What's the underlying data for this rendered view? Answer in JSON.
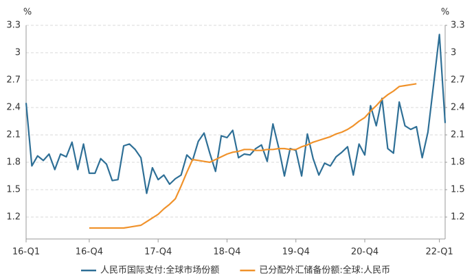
{
  "chart_data": {
    "type": "line",
    "y_label": "%",
    "y2_label": "%",
    "categories": [
      "16-Q1",
      null,
      null,
      null,
      null,
      null,
      null,
      null,
      null,
      null,
      null,
      "16-Q4",
      null,
      null,
      null,
      null,
      null,
      null,
      null,
      null,
      null,
      null,
      null,
      "17-Q4",
      null,
      null,
      null,
      null,
      null,
      null,
      null,
      null,
      null,
      null,
      null,
      "18-Q4",
      null,
      null,
      null,
      null,
      null,
      null,
      null,
      null,
      null,
      null,
      null,
      "19-Q4",
      null,
      null,
      null,
      null,
      null,
      null,
      null,
      null,
      null,
      null,
      null,
      "20-Q4",
      null,
      null,
      null,
      null,
      null,
      null,
      null,
      null,
      null,
      null,
      null,
      null,
      "22-Q1",
      null
    ],
    "series": [
      {
        "name": "人民币国际支付:全球市场份额",
        "color": "#2e6f96",
        "values": [
          2.45,
          1.76,
          1.87,
          1.82,
          1.89,
          1.72,
          1.89,
          1.86,
          2.02,
          1.72,
          2.0,
          1.68,
          1.68,
          1.84,
          1.78,
          1.6,
          1.61,
          1.98,
          2.0,
          1.94,
          1.85,
          1.46,
          1.74,
          1.61,
          1.66,
          1.56,
          1.62,
          1.66,
          1.88,
          1.82,
          2.03,
          2.12,
          1.9,
          1.7,
          2.09,
          2.07,
          2.15,
          1.85,
          1.89,
          1.88,
          1.95,
          1.99,
          1.81,
          2.22,
          1.96,
          1.65,
          1.95,
          1.93,
          1.65,
          2.11,
          1.84,
          1.66,
          1.79,
          1.76,
          1.86,
          1.91,
          1.97,
          1.66,
          2.0,
          1.88,
          2.42,
          2.2,
          2.5,
          1.95,
          1.9,
          2.46,
          2.2,
          2.16,
          2.19,
          1.85,
          2.13,
          2.66,
          3.2,
          2.23
        ]
      },
      {
        "name": "已分配外汇储备份额:全球:人民币",
        "color": "#f0922b",
        "axis": "y2",
        "values": [
          null,
          null,
          null,
          null,
          null,
          null,
          null,
          null,
          null,
          null,
          null,
          1.08,
          1.08,
          1.08,
          1.08,
          1.08,
          1.08,
          1.08,
          1.09,
          1.1,
          1.11,
          1.15,
          1.19,
          1.23,
          1.29,
          1.34,
          1.4,
          1.54,
          1.69,
          1.83,
          1.82,
          1.81,
          1.8,
          1.83,
          1.86,
          1.89,
          1.91,
          1.92,
          1.94,
          1.94,
          1.93,
          1.93,
          1.94,
          1.94,
          1.95,
          1.95,
          1.94,
          1.94,
          1.97,
          1.99,
          2.02,
          2.04,
          2.06,
          2.08,
          2.11,
          2.13,
          2.16,
          2.2,
          2.25,
          2.29,
          2.36,
          2.42,
          2.49,
          2.54,
          2.58,
          2.63,
          2.64,
          2.65,
          2.66,
          null,
          null,
          null,
          null,
          null
        ]
      }
    ],
    "ylim": [
      0.96,
      3.3
    ],
    "yticks": [
      1.2,
      1.5,
      1.8,
      2.1,
      2.4,
      2.7,
      3,
      3.3
    ],
    "y2lim": [
      0.96,
      3.3
    ],
    "y2ticks": [
      1.2,
      1.5,
      1.8,
      2.1,
      2.4,
      2.7,
      3,
      3.3
    ],
    "grid": true
  }
}
